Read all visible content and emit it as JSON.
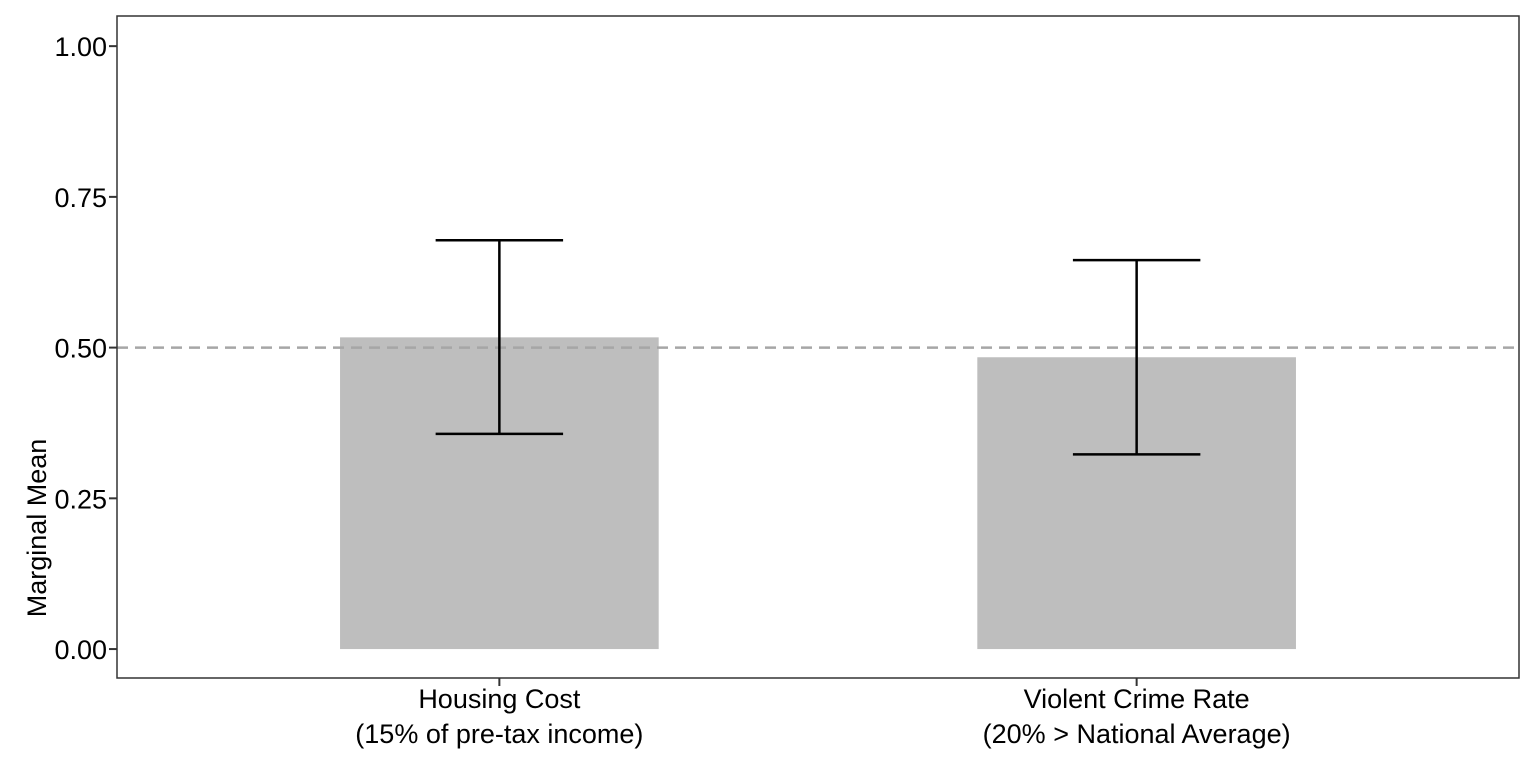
{
  "chart_data": {
    "type": "bar",
    "title": "",
    "xlabel": "",
    "ylabel": "Marginal Mean",
    "categories": [
      [
        "Housing Cost",
        "(15% of pre-tax income)"
      ],
      [
        "Violent Crime Rate",
        "(20% > National Average)"
      ]
    ],
    "values": [
      0.517,
      0.484
    ],
    "error_low": [
      0.357,
      0.323
    ],
    "error_high": [
      0.678,
      0.645
    ],
    "reference_line": 0.5,
    "ylim": [
      -0.048,
      1.05
    ],
    "yticks": [
      0.0,
      0.25,
      0.5,
      0.75,
      1.0
    ],
    "ytick_labels": [
      "0.00",
      "0.25",
      "0.50",
      "0.75",
      "1.00"
    ],
    "grid": false,
    "legend": "none",
    "colors": {
      "bar": "#bebebe",
      "errorbar": "#000000",
      "reference_line": "#a6a6a6",
      "panel_border": "#333333",
      "tick": "#333333"
    }
  }
}
